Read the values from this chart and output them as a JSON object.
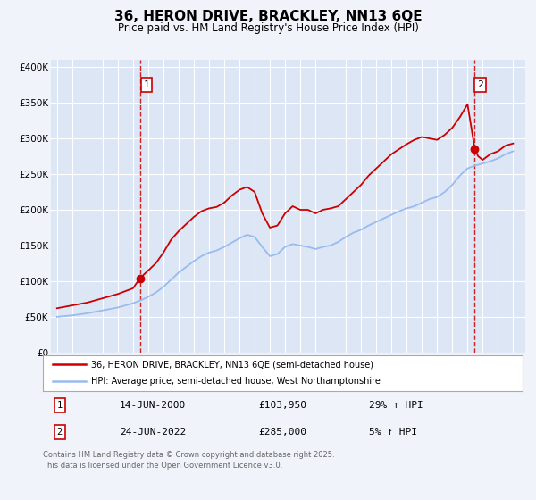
{
  "title": "36, HERON DRIVE, BRACKLEY, NN13 6QE",
  "subtitle": "Price paid vs. HM Land Registry's House Price Index (HPI)",
  "background_color": "#f0f4fa",
  "plot_bg_color": "#dce6f5",
  "grid_color": "#ffffff",
  "sale_color": "#cc0000",
  "hpi_color": "#99bbee",
  "marker1_date": 2000.45,
  "marker1_value": 103950,
  "marker2_date": 2022.48,
  "marker2_value": 285000,
  "vline_color": "#cc0000",
  "legend_label_sale": "36, HERON DRIVE, BRACKLEY, NN13 6QE (semi-detached house)",
  "legend_label_hpi": "HPI: Average price, semi-detached house, West Northamptonshire",
  "annotation1_date": "14-JUN-2000",
  "annotation1_price": "£103,950",
  "annotation1_hpi": "29% ↑ HPI",
  "annotation2_date": "24-JUN-2022",
  "annotation2_price": "£285,000",
  "annotation2_hpi": "5% ↑ HPI",
  "footer": "Contains HM Land Registry data © Crown copyright and database right 2025.\nThis data is licensed under the Open Government Licence v3.0.",
  "ylim": [
    0,
    410000
  ],
  "yticks": [
    0,
    50000,
    100000,
    150000,
    200000,
    250000,
    300000,
    350000,
    400000
  ],
  "ytick_labels": [
    "£0",
    "£50K",
    "£100K",
    "£150K",
    "£200K",
    "£250K",
    "£300K",
    "£350K",
    "£400K"
  ],
  "sale_data": [
    [
      1995.0,
      62000
    ],
    [
      1995.5,
      64000
    ],
    [
      1996.0,
      66000
    ],
    [
      1996.5,
      68000
    ],
    [
      1997.0,
      70000
    ],
    [
      1997.5,
      73000
    ],
    [
      1998.0,
      76000
    ],
    [
      1998.5,
      79000
    ],
    [
      1999.0,
      82000
    ],
    [
      1999.5,
      86000
    ],
    [
      2000.0,
      90000
    ],
    [
      2000.45,
      103950
    ],
    [
      2001.0,
      115000
    ],
    [
      2001.5,
      125000
    ],
    [
      2002.0,
      140000
    ],
    [
      2002.5,
      158000
    ],
    [
      2003.0,
      170000
    ],
    [
      2003.5,
      180000
    ],
    [
      2004.0,
      190000
    ],
    [
      2004.5,
      198000
    ],
    [
      2005.0,
      202000
    ],
    [
      2005.5,
      204000
    ],
    [
      2006.0,
      210000
    ],
    [
      2006.5,
      220000
    ],
    [
      2007.0,
      228000
    ],
    [
      2007.5,
      232000
    ],
    [
      2008.0,
      225000
    ],
    [
      2008.5,
      195000
    ],
    [
      2009.0,
      175000
    ],
    [
      2009.5,
      178000
    ],
    [
      2010.0,
      195000
    ],
    [
      2010.5,
      205000
    ],
    [
      2011.0,
      200000
    ],
    [
      2011.5,
      200000
    ],
    [
      2012.0,
      195000
    ],
    [
      2012.5,
      200000
    ],
    [
      2013.0,
      202000
    ],
    [
      2013.5,
      205000
    ],
    [
      2014.0,
      215000
    ],
    [
      2014.5,
      225000
    ],
    [
      2015.0,
      235000
    ],
    [
      2015.5,
      248000
    ],
    [
      2016.0,
      258000
    ],
    [
      2016.5,
      268000
    ],
    [
      2017.0,
      278000
    ],
    [
      2017.5,
      285000
    ],
    [
      2018.0,
      292000
    ],
    [
      2018.5,
      298000
    ],
    [
      2019.0,
      302000
    ],
    [
      2019.5,
      300000
    ],
    [
      2020.0,
      298000
    ],
    [
      2020.5,
      305000
    ],
    [
      2021.0,
      315000
    ],
    [
      2021.5,
      330000
    ],
    [
      2022.0,
      348000
    ],
    [
      2022.48,
      285000
    ],
    [
      2022.7,
      275000
    ],
    [
      2023.0,
      270000
    ],
    [
      2023.5,
      278000
    ],
    [
      2024.0,
      282000
    ],
    [
      2024.5,
      290000
    ],
    [
      2025.0,
      293000
    ]
  ],
  "hpi_data": [
    [
      1995.0,
      50000
    ],
    [
      1995.5,
      51000
    ],
    [
      1996.0,
      52000
    ],
    [
      1996.5,
      53500
    ],
    [
      1997.0,
      55000
    ],
    [
      1997.5,
      57000
    ],
    [
      1998.0,
      59000
    ],
    [
      1998.5,
      61000
    ],
    [
      1999.0,
      63000
    ],
    [
      1999.5,
      66000
    ],
    [
      2000.0,
      69000
    ],
    [
      2000.5,
      73000
    ],
    [
      2001.0,
      78000
    ],
    [
      2001.5,
      84000
    ],
    [
      2002.0,
      92000
    ],
    [
      2002.5,
      102000
    ],
    [
      2003.0,
      112000
    ],
    [
      2003.5,
      120000
    ],
    [
      2004.0,
      128000
    ],
    [
      2004.5,
      135000
    ],
    [
      2005.0,
      140000
    ],
    [
      2005.5,
      143000
    ],
    [
      2006.0,
      148000
    ],
    [
      2006.5,
      154000
    ],
    [
      2007.0,
      160000
    ],
    [
      2007.5,
      165000
    ],
    [
      2008.0,
      162000
    ],
    [
      2008.5,
      148000
    ],
    [
      2009.0,
      135000
    ],
    [
      2009.5,
      138000
    ],
    [
      2010.0,
      148000
    ],
    [
      2010.5,
      152000
    ],
    [
      2011.0,
      150000
    ],
    [
      2011.5,
      148000
    ],
    [
      2012.0,
      145000
    ],
    [
      2012.5,
      148000
    ],
    [
      2013.0,
      150000
    ],
    [
      2013.5,
      155000
    ],
    [
      2014.0,
      162000
    ],
    [
      2014.5,
      168000
    ],
    [
      2015.0,
      172000
    ],
    [
      2015.5,
      178000
    ],
    [
      2016.0,
      183000
    ],
    [
      2016.5,
      188000
    ],
    [
      2017.0,
      193000
    ],
    [
      2017.5,
      198000
    ],
    [
      2018.0,
      202000
    ],
    [
      2018.5,
      205000
    ],
    [
      2019.0,
      210000
    ],
    [
      2019.5,
      215000
    ],
    [
      2020.0,
      218000
    ],
    [
      2020.5,
      225000
    ],
    [
      2021.0,
      235000
    ],
    [
      2021.5,
      248000
    ],
    [
      2022.0,
      258000
    ],
    [
      2022.5,
      262000
    ],
    [
      2023.0,
      265000
    ],
    [
      2023.5,
      268000
    ],
    [
      2024.0,
      272000
    ],
    [
      2024.5,
      278000
    ],
    [
      2025.0,
      282000
    ]
  ]
}
